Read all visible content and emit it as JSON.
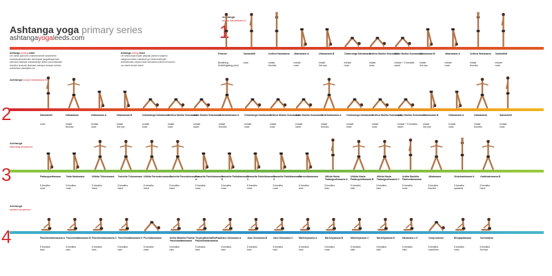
{
  "header": {
    "title_main": "Ashtanga yoga",
    "title_series": "primary series",
    "url_prefix": "ashtanga",
    "url_mid": "yoga",
    "url_suffix": "leeds.com"
  },
  "chants": {
    "opening": {
      "title_a": "Ashtanga",
      "title_b": "opening",
      "title_c": "chant",
      "text": "om   vande gurunam charanaravinde sandarshita svatmasukhavabodhe nihsreyase jangalikayamane samsara halahala mohashantye abahu purushakaram shankha chakrasi dharinam sahasra sirasam svetam pranamami patanjalim   om"
    },
    "closing": {
      "title_a": "Ashtanga",
      "title_b": "closing",
      "title_c": "chant",
      "text": "om   svasti praja bhyah paripala yantam nyayena margena mahim mahishah go brahmanebhyah shubhamastu nityam lokah samastah sukhino bhavantu om   shanti shanti shanti"
    }
  },
  "sections": [
    {
      "num": "1",
      "label": "Ashtanga",
      "sub": "surya namaskara A",
      "color": "#d63a2a",
      "poses": [
        {
          "n": "Posture",
          "b": "Breathing",
          "g": "Drishti/gazing point"
        },
        {
          "n": "Samasthiti",
          "b": "",
          "g": "nose"
        },
        {
          "n": "Urdhva Hastasana",
          "b": "inhale",
          "g": "thumbs"
        },
        {
          "n": "Uttanasana A",
          "b": "exhale",
          "g": "nose"
        },
        {
          "n": "Uttanasana B",
          "b": "inhale",
          "g": "3rd eye"
        },
        {
          "n": "Chaturanga Dandasana",
          "b": "exhale",
          "g": "nose"
        },
        {
          "n": "Urdhva Mukha Svanasana",
          "b": "inhale",
          "g": "nose"
        },
        {
          "n": "Adho Mukha Svanasana",
          "b": "exhale + 5 breaths",
          "g": "navel"
        },
        {
          "n": "Uttanasana B",
          "b": "inhale",
          "g": "3rd eye"
        },
        {
          "n": "Uttanasana A",
          "b": "exhale",
          "g": "nose"
        },
        {
          "n": "Urdhva Hastasana",
          "b": "inhale",
          "g": "thumbs"
        },
        {
          "n": "Samasthiti",
          "b": "exhale",
          "g": "nose"
        }
      ]
    },
    {
      "num": "2",
      "label": "Ashtanga",
      "sub": "surya namaskara B",
      "color": "#e8a21e",
      "poses": [
        {
          "n": "Samasthiti",
          "b": "",
          "g": "nose"
        },
        {
          "n": "Utkatasana",
          "b": "inhale",
          "g": "thumbs"
        },
        {
          "n": "Uttanasana A",
          "b": "exhale",
          "g": "nose"
        },
        {
          "n": "Uttanasana B",
          "b": "inhale",
          "g": "3rd eye"
        },
        {
          "n": "Chaturanga Dandasana",
          "b": "exhale",
          "g": "nose"
        },
        {
          "n": "Urdhva Mukha Svanasana",
          "b": "inhale",
          "g": "nose"
        },
        {
          "n": "Adho Mukha Svanasana",
          "b": "exhale",
          "g": "navel"
        },
        {
          "n": "Virabhadrasana A",
          "b": "inhale",
          "g": "thumbs"
        },
        {
          "n": "Chaturanga Dandasana",
          "b": "exhale",
          "g": "nose"
        },
        {
          "n": "Urdhva Mukha Svanasana",
          "b": "inhale",
          "g": "nose"
        },
        {
          "n": "Adho Mukha Svanasana",
          "b": "exhale",
          "g": "navel"
        },
        {
          "n": "Virabhadrasana A",
          "b": "inhale",
          "g": "thumbs"
        },
        {
          "n": "Chaturanga Dandasana",
          "b": "exhale",
          "g": "nose"
        },
        {
          "n": "Urdhva Mukha Svanasana",
          "b": "inhale",
          "g": "nose"
        },
        {
          "n": "Adho Mukha Svanasana",
          "b": "exhale + 5 breaths",
          "g": "navel"
        },
        {
          "n": "Uttanasana B",
          "b": "inhale",
          "g": "3rd eye"
        },
        {
          "n": "Uttanasana A",
          "b": "exhale",
          "g": "nose"
        },
        {
          "n": "Utkatasana",
          "b": "inhale",
          "g": "thumbs"
        },
        {
          "n": "Samasthiti",
          "b": "exhale",
          "g": "nose"
        }
      ]
    },
    {
      "num": "3",
      "label": "Ashtanga",
      "sub": "standing sequence",
      "color": "#7ab648",
      "poses": [
        {
          "n": "Padangusthasana",
          "b": "5 breaths",
          "g": "nose"
        },
        {
          "n": "Pada Hastasana",
          "b": "5 breaths",
          "g": "nose"
        },
        {
          "n": "Utthita Trikonasana",
          "b": "5 breaths",
          "g": "hand"
        },
        {
          "n": "Parivrtta Trikonasana",
          "b": "5 breaths",
          "g": "hand"
        },
        {
          "n": "Utthita Parsvakonasana",
          "b": "5 breaths",
          "g": "hand"
        },
        {
          "n": "Parivrtta Parsvakonasana",
          "b": "5 breaths",
          "g": "hand"
        },
        {
          "n": "Prasarita Padottanasana A",
          "b": "5 breaths",
          "g": "nose"
        },
        {
          "n": "Prasarita Padottanasana B",
          "b": "5 breaths",
          "g": "nose"
        },
        {
          "n": "Prasarita Padottanasana C",
          "b": "5 breaths",
          "g": "nose"
        },
        {
          "n": "Prasarita Padottanasana D",
          "b": "5 breaths",
          "g": "nose"
        },
        {
          "n": "Parsvottanasana",
          "b": "5 breaths",
          "g": "toes"
        },
        {
          "n": "Utthita Hasta Padangusthasana A",
          "b": "5 breaths",
          "g": "toes"
        },
        {
          "n": "Utthita Hasta Padangusthasana B",
          "b": "5 breaths",
          "g": "side"
        },
        {
          "n": "Utthita Hasta Padangusthasana C",
          "b": "5 breaths",
          "g": "toes"
        },
        {
          "n": "Ardha Baddha Padmottanasana",
          "b": "5 breaths",
          "g": "nose"
        },
        {
          "n": "Utkatasana",
          "b": "5 breaths",
          "g": "thumbs"
        },
        {
          "n": "Virabhadrasana A",
          "b": "5 breaths",
          "g": "upwards"
        },
        {
          "n": "Virabhadrasana B",
          "b": "5 breaths",
          "g": "hand"
        }
      ]
    },
    {
      "num": "4",
      "label": "Ashtanga",
      "sub": "seated sequence",
      "color": "#3aa0c8",
      "poses": [
        {
          "n": "Paschimattanasana A",
          "b": "5 breaths",
          "g": "toes"
        },
        {
          "n": "Paschimattanasana B",
          "b": "5 breaths",
          "g": "toes"
        },
        {
          "n": "Paschimattanasana C",
          "b": "5 breaths",
          "g": "toes"
        },
        {
          "n": "Paschimattanasana D",
          "b": "5 breaths",
          "g": "toes"
        },
        {
          "n": "Purvottanasana",
          "b": "5 breaths",
          "g": "nose"
        },
        {
          "n": "Ardha Baddha Padma Paschimattanasana",
          "b": "5 breaths",
          "g": "toes"
        },
        {
          "n": "TiryangMukhaEkaPada Paschimattanasana",
          "b": "5 breaths",
          "g": "toes"
        },
        {
          "n": "Janu Sirsasana A",
          "b": "5 breaths",
          "g": "toes"
        },
        {
          "n": "Janu Sirsasana B",
          "b": "5 breaths",
          "g": "toes"
        },
        {
          "n": "Janu Sirsasana C",
          "b": "5 breaths",
          "g": "toes"
        },
        {
          "n": "Marichyasana A",
          "b": "5 breaths",
          "g": "toes"
        },
        {
          "n": "Marichyasana B",
          "b": "5 breaths",
          "g": "nose"
        },
        {
          "n": "Marichyasana C",
          "b": "5 breaths",
          "g": "side"
        },
        {
          "n": "Marichyasana D",
          "b": "5 breaths",
          "g": "side"
        },
        {
          "n": "Navasana x 5",
          "b": "5 breaths",
          "g": "toes"
        },
        {
          "n": "Jump around",
          "b": "5 breaths",
          "g": "nose/toes"
        },
        {
          "n": "Bhujapidasana",
          "b": "5 breaths",
          "g": "nose"
        },
        {
          "n": "Kurmasana",
          "b": "5 breaths",
          "g": "3rd eye"
        }
      ]
    }
  ]
}
